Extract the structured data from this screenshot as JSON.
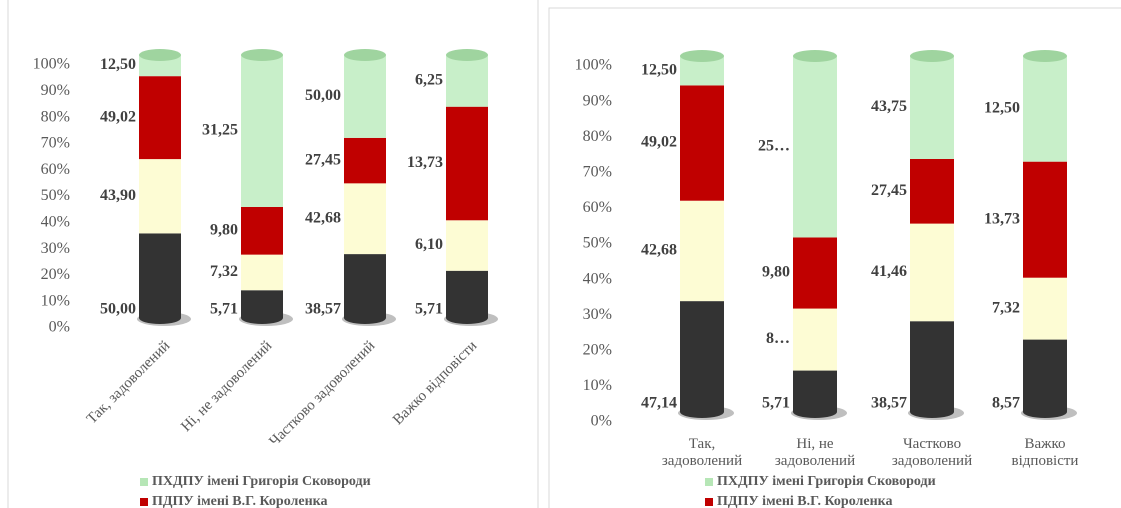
{
  "chart_data": [
    {
      "type": "bar",
      "stacking": "percent",
      "categories": [
        "Так, задоволений",
        "Ні, не задоволений",
        "Частково задоволений",
        "Важко відповісти"
      ],
      "series": [
        {
          "color": "#333333",
          "values": [
            50.0,
            5.71,
            38.57,
            5.71
          ],
          "value_labels": [
            "50,00",
            "5,71",
            "38,57",
            "5,71"
          ]
        },
        {
          "color": "#fdfcd4",
          "values": [
            43.9,
            7.32,
            42.68,
            6.1
          ],
          "value_labels": [
            "43,90",
            "7,32",
            "42,68",
            "6,10"
          ]
        },
        {
          "name": "ПДПУ імені В.Г. Короленка",
          "color": "#c00000",
          "values": [
            49.02,
            9.8,
            27.45,
            13.73
          ],
          "value_labels": [
            "49,02",
            "9,80",
            "27,45",
            "13,73"
          ]
        },
        {
          "name": "ПХДПУ імені Григорія Сковороди",
          "color": "#c8efc9",
          "values": [
            12.5,
            31.25,
            50.0,
            6.25
          ],
          "value_labels": [
            "12,50",
            "31,25",
            "50,00",
            "6,25"
          ]
        }
      ],
      "ylim": [
        0,
        100
      ],
      "yticks": [
        {
          "value": 0,
          "label": "0%"
        },
        {
          "value": 10,
          "label": "10%"
        },
        {
          "value": 20,
          "label": "20%"
        },
        {
          "value": 30,
          "label": "30%"
        },
        {
          "value": 40,
          "label": "40%"
        },
        {
          "value": 50,
          "label": "50%"
        },
        {
          "value": 60,
          "label": "60%"
        },
        {
          "value": 70,
          "label": "70%"
        },
        {
          "value": 80,
          "label": "80%"
        },
        {
          "value": 90,
          "label": "90%"
        },
        {
          "value": 100,
          "label": "100%"
        }
      ]
    },
    {
      "type": "bar",
      "stacking": "percent",
      "categories": [
        "Так, задоволений",
        "Ні, не задоволений",
        "Частково задоволений",
        "Важко відповісти"
      ],
      "series": [
        {
          "color": "#333333",
          "values": [
            47.14,
            5.71,
            38.57,
            8.57
          ],
          "value_labels": [
            "47,14",
            "5,71",
            "38,57",
            "8,57"
          ]
        },
        {
          "color": "#fdfcd4",
          "values": [
            42.68,
            8.54,
            41.46,
            7.32
          ],
          "value_labels": [
            "42,68",
            "8…",
            "41,46",
            "7,32"
          ]
        },
        {
          "name": "ПДПУ імені В.Г. Короленка",
          "color": "#c00000",
          "values": [
            49.02,
            9.8,
            27.45,
            13.73
          ],
          "value_labels": [
            "49,02",
            "9,80",
            "27,45",
            "13,73"
          ]
        },
        {
          "name": "ПХДПУ імені Григорія Сковороди",
          "color": "#c8efc9",
          "values": [
            12.5,
            25.0,
            43.75,
            12.5
          ],
          "value_labels": [
            "12,50",
            "25…",
            "43,75",
            "12,50"
          ]
        }
      ],
      "ylim": [
        0,
        100
      ],
      "yticks": [
        {
          "value": 0,
          "label": "0%"
        },
        {
          "value": 10,
          "label": "10%"
        },
        {
          "value": 20,
          "label": "20%"
        },
        {
          "value": 30,
          "label": "30%"
        },
        {
          "value": 40,
          "label": "40%"
        },
        {
          "value": 50,
          "label": "50%"
        },
        {
          "value": 60,
          "label": "60%"
        },
        {
          "value": 70,
          "label": "70%"
        },
        {
          "value": 80,
          "label": "80%"
        },
        {
          "value": 90,
          "label": "90%"
        },
        {
          "value": 100,
          "label": "100%"
        }
      ]
    }
  ]
}
